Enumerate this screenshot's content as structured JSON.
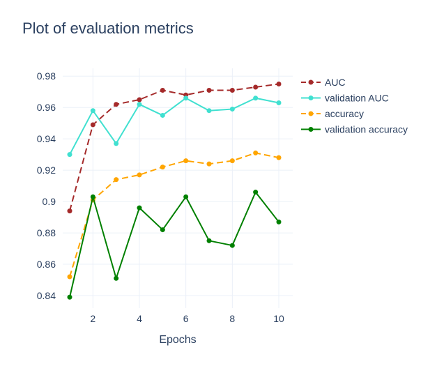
{
  "chart_data": {
    "type": "line",
    "title": "Plot of evaluation metrics",
    "xlabel": "Epochs",
    "ylabel": "",
    "x": [
      1,
      2,
      3,
      4,
      5,
      6,
      7,
      8,
      9,
      10
    ],
    "xlim": [
      0.7,
      10.6
    ],
    "ylim": [
      0.832,
      0.985
    ],
    "xticks": [
      2,
      4,
      6,
      8,
      10
    ],
    "yticks": [
      0.84,
      0.86,
      0.88,
      0.9,
      0.92,
      0.94,
      0.96,
      0.98
    ],
    "ytick_labels": [
      "0.84",
      "0.86",
      "0.88",
      "0.9",
      "0.92",
      "0.94",
      "0.96",
      "0.98"
    ],
    "grid": true,
    "legend_position": "top-right",
    "series": [
      {
        "name": "AUC",
        "color": "#a52a2a",
        "dash": true,
        "values": [
          0.894,
          0.949,
          0.962,
          0.965,
          0.971,
          0.968,
          0.971,
          0.971,
          0.973,
          0.975
        ]
      },
      {
        "name": "validation AUC",
        "color": "#40e0d0",
        "dash": false,
        "values": [
          0.93,
          0.958,
          0.937,
          0.962,
          0.955,
          0.966,
          0.958,
          0.959,
          0.966,
          0.963
        ]
      },
      {
        "name": "accuracy",
        "color": "#ffa500",
        "dash": true,
        "values": [
          0.852,
          0.901,
          0.914,
          0.917,
          0.922,
          0.926,
          0.924,
          0.926,
          0.931,
          0.928
        ]
      },
      {
        "name": "validation accuracy",
        "color": "#008000",
        "dash": false,
        "values": [
          0.839,
          0.903,
          0.851,
          0.896,
          0.882,
          0.903,
          0.875,
          0.872,
          0.906,
          0.887
        ]
      }
    ]
  }
}
